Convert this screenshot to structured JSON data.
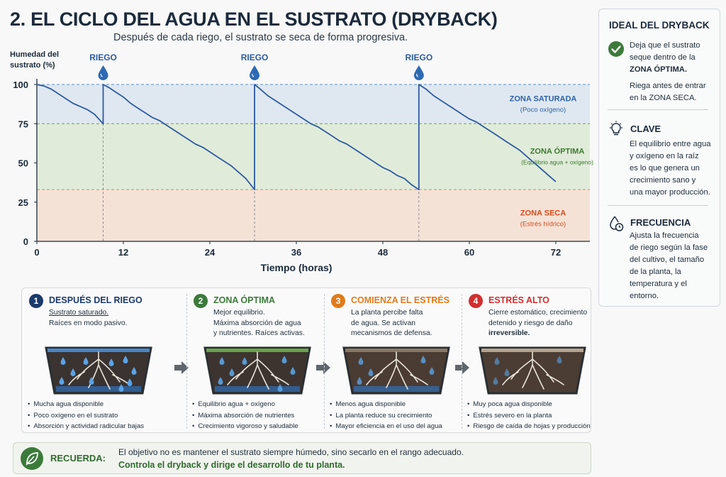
{
  "title": "2. EL CICLO DEL AGUA EN EL SUSTRATO (DRYBACK)",
  "subtitle": "Después de cada riego, el sustrato se seca de forma progresiva.",
  "chart_data": {
    "type": "line",
    "ylabel": "Humedad del sustrato (%)",
    "xlabel": "Tiempo (horas)",
    "xlim": [
      0,
      72
    ],
    "ylim": [
      0,
      100
    ],
    "xticks": [
      0,
      12,
      24,
      36,
      48,
      60,
      72
    ],
    "yticks": [
      0,
      25,
      50,
      75,
      100
    ],
    "irrigation_label": "RIEGO",
    "irrigations_h": [
      9.2,
      30.2,
      53
    ],
    "zones": [
      {
        "name": "ZONA SATURADA",
        "note": "(Poco oxígeno)",
        "from": 75,
        "to": 100,
        "color": "#dfe8f1",
        "text_color": "#2f62a8"
      },
      {
        "name": "ZONA ÓPTIMA",
        "note": "(Equilibrio agua + oxígeno)",
        "from": 33,
        "to": 75,
        "color": "#e0ecd9",
        "text_color": "#3b7a2e"
      },
      {
        "name": "ZONA SECA",
        "note": "(Estrés hídrico)",
        "from": 0,
        "to": 33,
        "color": "#f5e2d6",
        "text_color": "#d64a1c"
      }
    ],
    "series": [
      {
        "color": "#2c5aa0",
        "x": [
          0,
          1,
          2,
          3,
          4,
          5,
          6,
          7,
          8,
          9.2,
          9.2,
          10,
          11,
          12,
          13,
          14,
          15,
          16,
          17,
          18,
          19,
          20,
          21,
          22,
          23,
          24,
          25,
          26,
          27,
          28,
          29,
          30.2,
          30.2,
          31,
          32,
          33,
          34,
          35,
          36,
          37,
          38,
          39,
          40,
          41,
          42,
          43,
          44,
          45,
          46,
          47,
          48,
          49,
          50,
          51,
          52,
          53,
          53,
          54,
          55,
          56,
          57,
          58,
          59,
          60,
          61,
          62,
          63,
          64,
          65,
          66,
          67,
          68,
          69,
          70,
          71,
          72
        ],
        "y": [
          100,
          99,
          97,
          94,
          91,
          88,
          86,
          84,
          81,
          75,
          100,
          98,
          95,
          92,
          88,
          85,
          82,
          79,
          77,
          74,
          71,
          68,
          65,
          62,
          60,
          57,
          54,
          51,
          48,
          44,
          40,
          33,
          100,
          97,
          93,
          90,
          87,
          84,
          81,
          78,
          75,
          73,
          70,
          67,
          64,
          62,
          59,
          56,
          53,
          50,
          47,
          45,
          42,
          40,
          36,
          33,
          100,
          97,
          93,
          90,
          87,
          84,
          81,
          78,
          76,
          73,
          70,
          67,
          64,
          61,
          58,
          54,
          50,
          46,
          42,
          38
        ]
      }
    ]
  },
  "side": {
    "heading": "IDEAL DEL DRYBACK",
    "b1_lines": [
      "Deja que el sustrato",
      "seque dentro de la",
      "ZONA ÓPTIMA.",
      "",
      "Riega antes de entrar",
      "en la ZONA SECA."
    ],
    "b2_title": "CLAVE",
    "b2_lines": [
      "El equilibrio entre agua",
      "y oxígeno en la raíz",
      "es lo que genera un",
      "crecimiento sano y",
      "una mayor producción."
    ],
    "b3_title": "FRECUENCIA",
    "b3_lines": [
      "Ajusta la frecuencia",
      "de riego según la fase",
      "del cultivo, el tamaño",
      "de la planta, la",
      "temperatura y el",
      "entorno."
    ],
    "check_color": "#3c7a3a"
  },
  "stages": [
    {
      "n": "1",
      "color": "#1b3a6b",
      "name": "DESPUÉS DEL RIEGO",
      "desc": [
        "Sustrato saturado.",
        "Raíces en modo pasivo."
      ],
      "items": [
        "Mucha agua disponible",
        "Poco oxígeno en el sustrato",
        "Absorción y actividad radicular bajas"
      ]
    },
    {
      "n": "2",
      "color": "#3c7a3a",
      "name": "ZONA ÓPTIMA",
      "desc": [
        "Mejor equilibrio.",
        "Máxima absorción de agua",
        "y nutrientes. Raíces activas."
      ],
      "items": [
        "Equilibrio agua + oxígeno",
        "Máxima absorción de nutrientes",
        "Crecimiento vigoroso y saludable"
      ]
    },
    {
      "n": "3",
      "color": "#e07b1a",
      "name": "COMIENZA EL ESTRÉS",
      "desc": [
        "La planta percibe falta",
        "de agua. Se activan",
        "mecanismos de defensa."
      ],
      "items": [
        "Menos agua disponible",
        "La planta reduce su crecimiento",
        "Mayor eficiencia en el uso del agua"
      ]
    },
    {
      "n": "4",
      "color": "#d32f2f",
      "name": "ESTRÉS ALTO",
      "desc": [
        "Cierre estomático, crecimiento",
        "detenido y riesgo de daño",
        "irreversible."
      ],
      "items": [
        "Muy poca agua disponible",
        "Estrés severo en la planta",
        "Riesgo de caída de hojas y producción"
      ]
    }
  ],
  "remember": {
    "label": "RECUERDA:",
    "line1": "El objetivo no es mantener el sustrato siempre húmedo, sino secarlo en el rango adecuado.",
    "line2": "Controla el dryback y dirige el desarrollo de tu planta."
  }
}
